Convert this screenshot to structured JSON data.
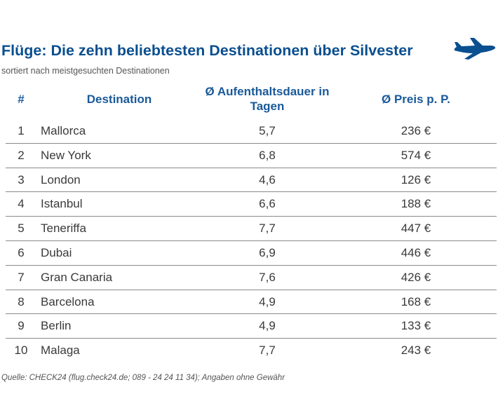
{
  "title": "Flüge: Die zehn beliebtesten Destinationen über Silvester",
  "subtitle": "sortiert nach meistgesuchten Destinationen",
  "icon": "airplane-icon",
  "accent_color": "#0a4f8f",
  "header_color": "#1a5a9a",
  "chart_data": {
    "type": "table",
    "columns": [
      "#",
      "Destination",
      "Ø Aufenthaltsdauer in Tagen",
      "Ø Preis p. P."
    ],
    "rows": [
      [
        "1",
        "Mallorca",
        "5,7",
        "236 €"
      ],
      [
        "2",
        "New York",
        "6,8",
        "574 €"
      ],
      [
        "3",
        "London",
        "4,6",
        "126 €"
      ],
      [
        "4",
        "Istanbul",
        "6,6",
        "188 €"
      ],
      [
        "5",
        "Teneriffa",
        "7,7",
        "447 €"
      ],
      [
        "6",
        "Dubai",
        "6,9",
        "446 €"
      ],
      [
        "7",
        "Gran Canaria",
        "7,6",
        "426 €"
      ],
      [
        "8",
        "Barcelona",
        "4,9",
        "168 €"
      ],
      [
        "9",
        "Berlin",
        "4,9",
        "133 €"
      ],
      [
        "10",
        "Malaga",
        "7,7",
        "243 €"
      ]
    ]
  },
  "source": "Quelle: CHECK24 (flug.check24.de; 089 - 24 24 11 34); Angaben ohne Gewähr"
}
